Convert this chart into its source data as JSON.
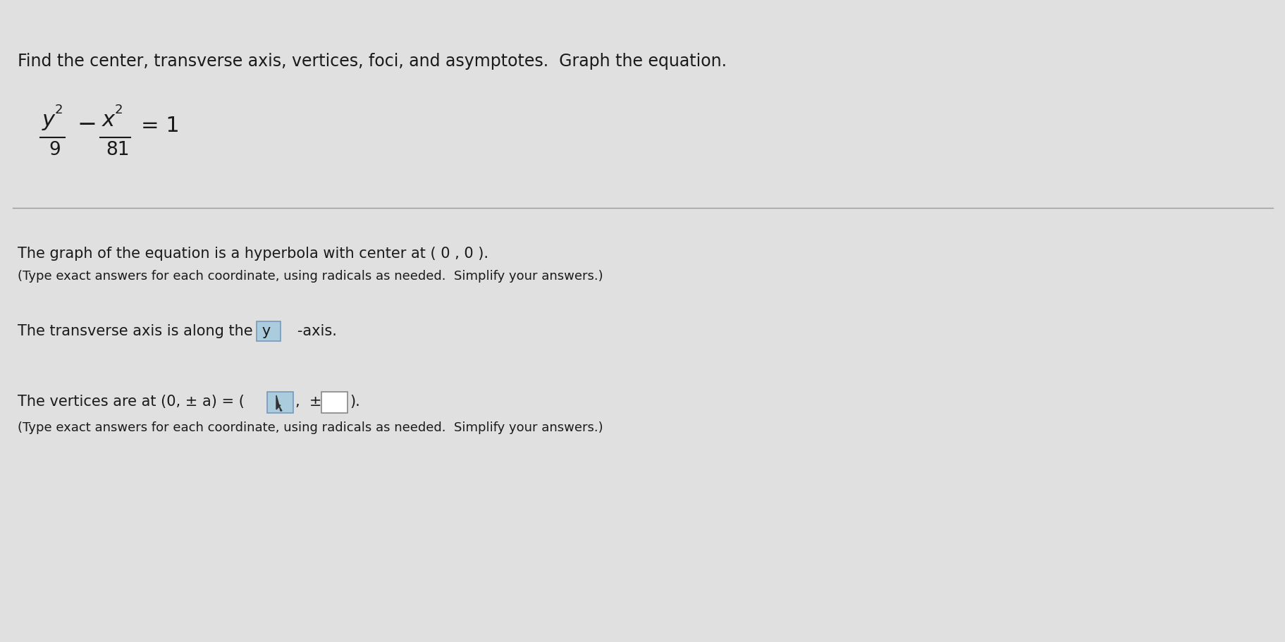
{
  "header_color": "#2e7fa8",
  "content_bg": "#e0e0e0",
  "text_color": "#1a1a1a",
  "separator_color": "#999999",
  "highlight_box_color": "#aaccdd",
  "highlight_box_edge": "#7799bb",
  "white_box_color": "#ffffff",
  "white_box_edge": "#888888",
  "line1": "Find the center, transverse axis, vertices, foci, and asymptotes.  Graph the equation.",
  "para1_line1": "The graph of the equation is a hyperbola with center at ( 0 , 0 ).",
  "para1_line2": "(Type exact answers for each coordinate, using radicals as needed.  Simplify your answers.)",
  "para2_pre": "The transverse axis is along the  y",
  "para2_post": "   -axis.",
  "para3_pre": "The vertices are at (0, ± a) = (",
  "para3_mid": ",  ±",
  "para3_end": ").",
  "para3_line2": "(Type exact answers for each coordinate, using radicals as needed.  Simplify your answers.)",
  "fs_title": 17,
  "fs_para": 15,
  "fs_small": 13,
  "fs_eq_main": 22,
  "fs_eq_sup": 13,
  "fs_eq_denom": 19
}
